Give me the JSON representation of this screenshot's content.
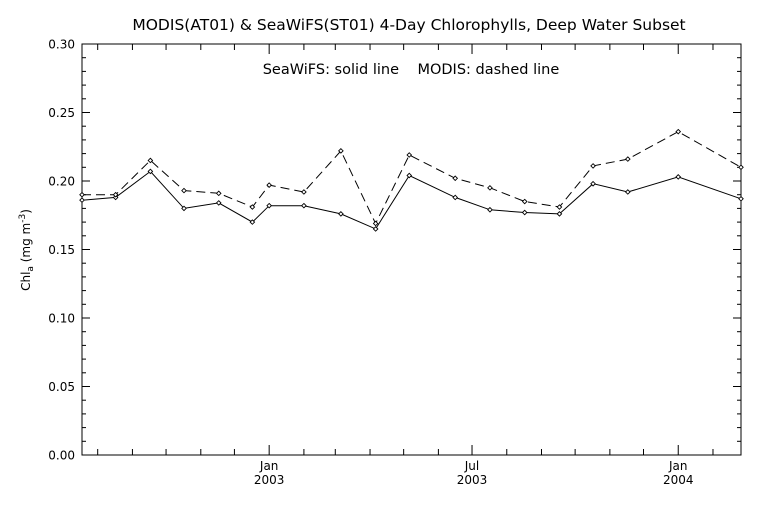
{
  "chart_data": {
    "type": "line",
    "title": "MODIS(AT01) & SeaWiFS(ST01) 4-Day Chlorophylls, Deep Water Subset",
    "annotation": "SeaWiFS: solid line    MODIS: dashed line",
    "ylabel": "Chl",
    "ylabel_subscript": "a",
    "ylabel_units_open": " (mg m",
    "ylabel_units_exp": "-3",
    "ylabel_units_close": ")",
    "xlabel": "",
    "ylim": [
      0.0,
      0.3
    ],
    "xlim": [
      "2002-07-18",
      "2004-02-26"
    ],
    "y_ticks": [
      "0.00",
      "0.05",
      "0.10",
      "0.15",
      "0.20",
      "0.25",
      "0.30"
    ],
    "x_ticks": [
      {
        "date": "2002-08-01",
        "month": "",
        "year": ""
      },
      {
        "date": "2002-09-01",
        "month": "",
        "year": ""
      },
      {
        "date": "2002-10-01",
        "month": "",
        "year": ""
      },
      {
        "date": "2002-11-01",
        "month": "",
        "year": ""
      },
      {
        "date": "2002-12-01",
        "month": "",
        "year": ""
      },
      {
        "date": "2003-01-01",
        "month": "Jan",
        "year": "2003"
      },
      {
        "date": "2003-02-01",
        "month": "",
        "year": ""
      },
      {
        "date": "2003-03-01",
        "month": "",
        "year": ""
      },
      {
        "date": "2003-04-01",
        "month": "",
        "year": ""
      },
      {
        "date": "2003-05-01",
        "month": "",
        "year": ""
      },
      {
        "date": "2003-06-01",
        "month": "",
        "year": ""
      },
      {
        "date": "2003-07-01",
        "month": "Jul",
        "year": "2003"
      },
      {
        "date": "2003-08-01",
        "month": "",
        "year": ""
      },
      {
        "date": "2003-09-01",
        "month": "",
        "year": ""
      },
      {
        "date": "2003-10-01",
        "month": "",
        "year": ""
      },
      {
        "date": "2003-11-01",
        "month": "",
        "year": ""
      },
      {
        "date": "2003-12-01",
        "month": "",
        "year": ""
      },
      {
        "date": "2004-01-01",
        "month": "Jan",
        "year": "2004"
      },
      {
        "date": "2004-02-01",
        "month": "",
        "year": ""
      }
    ],
    "series": [
      {
        "name": "SeaWiFS",
        "line_style": "solid",
        "color": "#000000",
        "points": [
          {
            "x": "2002-07-18",
            "y": 0.186
          },
          {
            "x": "2002-08-17",
            "y": 0.188
          },
          {
            "x": "2002-09-17",
            "y": 0.207
          },
          {
            "x": "2002-10-17",
            "y": 0.18
          },
          {
            "x": "2002-11-17",
            "y": 0.184
          },
          {
            "x": "2002-12-17",
            "y": 0.17
          },
          {
            "x": "2003-01-01",
            "y": 0.182
          },
          {
            "x": "2003-02-01",
            "y": 0.182
          },
          {
            "x": "2003-03-06",
            "y": 0.176
          },
          {
            "x": "2003-04-06",
            "y": 0.165
          },
          {
            "x": "2003-05-06",
            "y": 0.204
          },
          {
            "x": "2003-06-16",
            "y": 0.188
          },
          {
            "x": "2003-07-17",
            "y": 0.179
          },
          {
            "x": "2003-08-17",
            "y": 0.177
          },
          {
            "x": "2003-09-17",
            "y": 0.176
          },
          {
            "x": "2003-10-17",
            "y": 0.198
          },
          {
            "x": "2003-11-17",
            "y": 0.192
          },
          {
            "x": "2004-01-01",
            "y": 0.203
          },
          {
            "x": "2004-02-26",
            "y": 0.187
          }
        ]
      },
      {
        "name": "MODIS",
        "line_style": "dashed",
        "color": "#000000",
        "points": [
          {
            "x": "2002-07-18",
            "y": 0.19
          },
          {
            "x": "2002-08-17",
            "y": 0.19
          },
          {
            "x": "2002-09-17",
            "y": 0.215
          },
          {
            "x": "2002-10-17",
            "y": 0.193
          },
          {
            "x": "2002-11-17",
            "y": 0.191
          },
          {
            "x": "2002-12-17",
            "y": 0.181
          },
          {
            "x": "2003-01-01",
            "y": 0.197
          },
          {
            "x": "2003-02-01",
            "y": 0.192
          },
          {
            "x": "2003-03-06",
            "y": 0.222
          },
          {
            "x": "2003-04-06",
            "y": 0.169
          },
          {
            "x": "2003-05-06",
            "y": 0.219
          },
          {
            "x": "2003-06-16",
            "y": 0.202
          },
          {
            "x": "2003-07-17",
            "y": 0.195
          },
          {
            "x": "2003-08-17",
            "y": 0.185
          },
          {
            "x": "2003-09-17",
            "y": 0.181
          },
          {
            "x": "2003-10-17",
            "y": 0.211
          },
          {
            "x": "2003-11-17",
            "y": 0.216
          },
          {
            "x": "2004-01-01",
            "y": 0.236
          },
          {
            "x": "2004-02-26",
            "y": 0.21
          }
        ]
      }
    ],
    "grid": false,
    "legend": "none"
  }
}
